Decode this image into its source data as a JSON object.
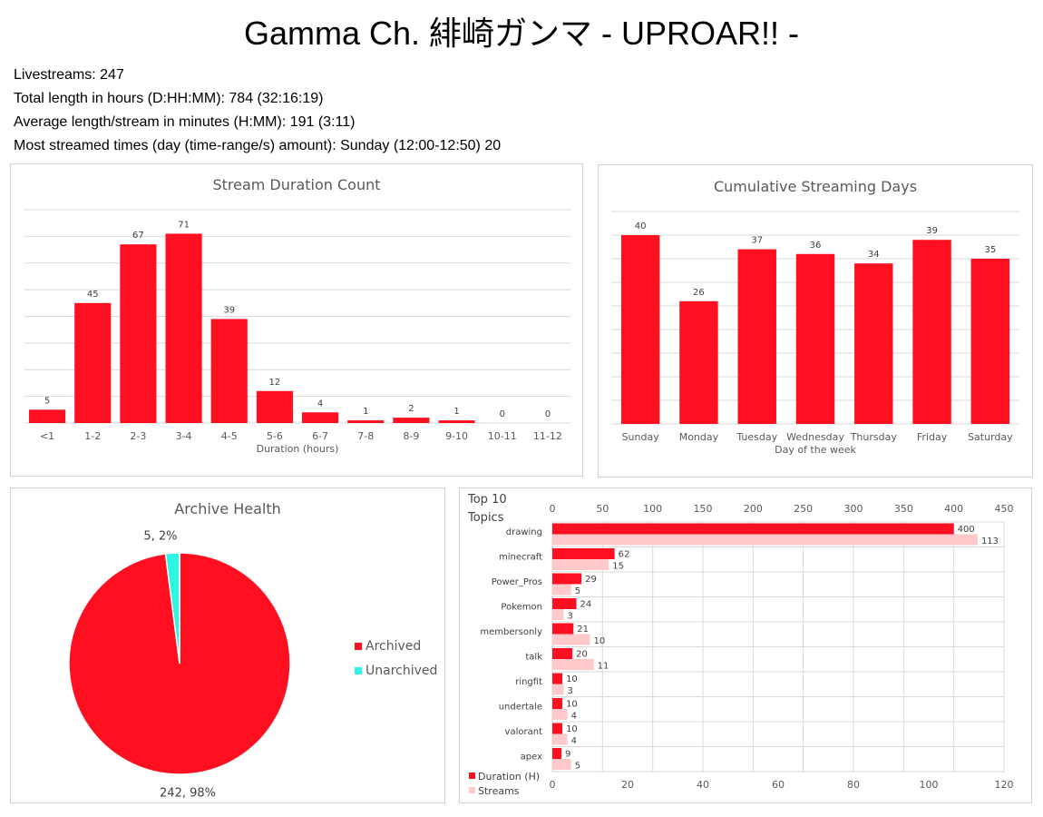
{
  "page": {
    "title": "Gamma Ch. 緋崎ガンマ - UPROAR!! -",
    "stats": [
      "Livestreams: 247",
      "Total length in hours (D:HH:MM): 784 (32:16:19)",
      "Average length/stream in minutes (H:MM): 191 (3:11)",
      "Most streamed times (day (time-range/s) amount): Sunday (12:00-12:50) 20"
    ]
  },
  "colors": {
    "primary": "#ff0f1f",
    "light": "#ffc9cc",
    "teal": "#2ef5e3",
    "grid": "#d9d9d9",
    "text": "#595959"
  },
  "chart_data": [
    {
      "type": "bar",
      "title": "Stream Duration Count",
      "xlabel": "Duration (hours)",
      "ylabel": "",
      "categories": [
        "<1",
        "1-2",
        "2-3",
        "3-4",
        "4-5",
        "5-6",
        "6-7",
        "7-8",
        "8-9",
        "9-10",
        "10-11",
        "11-12"
      ],
      "values": [
        5,
        45,
        67,
        71,
        39,
        12,
        4,
        1,
        2,
        1,
        0,
        0
      ],
      "ylim": [
        0,
        80
      ],
      "grid": true
    },
    {
      "type": "bar",
      "title": "Cumulative Streaming Days",
      "xlabel": "Day of the week",
      "ylabel": "",
      "categories": [
        "Sunday",
        "Monday",
        "Tuesday",
        "Wednesday",
        "Thursday",
        "Friday",
        "Saturday"
      ],
      "values": [
        40,
        26,
        37,
        36,
        34,
        39,
        35
      ],
      "ylim": [
        0,
        45
      ],
      "grid": true
    },
    {
      "type": "pie",
      "title": "Archive Health",
      "categories": [
        "Archived",
        "Unarchived"
      ],
      "values": [
        242,
        5
      ],
      "labels": [
        "242, 98%",
        "5, 2%"
      ],
      "legend": "right"
    },
    {
      "type": "bar",
      "orientation": "horizontal",
      "title": "Top 10 Topics",
      "categories": [
        "drawing",
        "minecraft",
        "Power_Pros",
        "Pokemon",
        "membersonly",
        "talk",
        "ringfit",
        "undertale",
        "valorant",
        "apex"
      ],
      "series": [
        {
          "name": "Duration (H)",
          "axis": "top",
          "values": [
            400,
            62,
            29,
            24,
            21,
            20,
            10,
            10,
            10,
            9
          ]
        },
        {
          "name": "Streams",
          "axis": "bottom",
          "values": [
            113,
            15,
            5,
            3,
            10,
            11,
            3,
            4,
            4,
            5
          ]
        }
      ],
      "top_axis": {
        "range": [
          0,
          450
        ],
        "ticks": [
          0,
          50,
          100,
          150,
          200,
          250,
          300,
          350,
          400,
          450
        ]
      },
      "bottom_axis": {
        "range": [
          0,
          120
        ],
        "ticks": [
          0,
          20,
          40,
          60,
          80,
          100,
          120
        ]
      },
      "legend": "bottom-left",
      "grid": true
    }
  ]
}
